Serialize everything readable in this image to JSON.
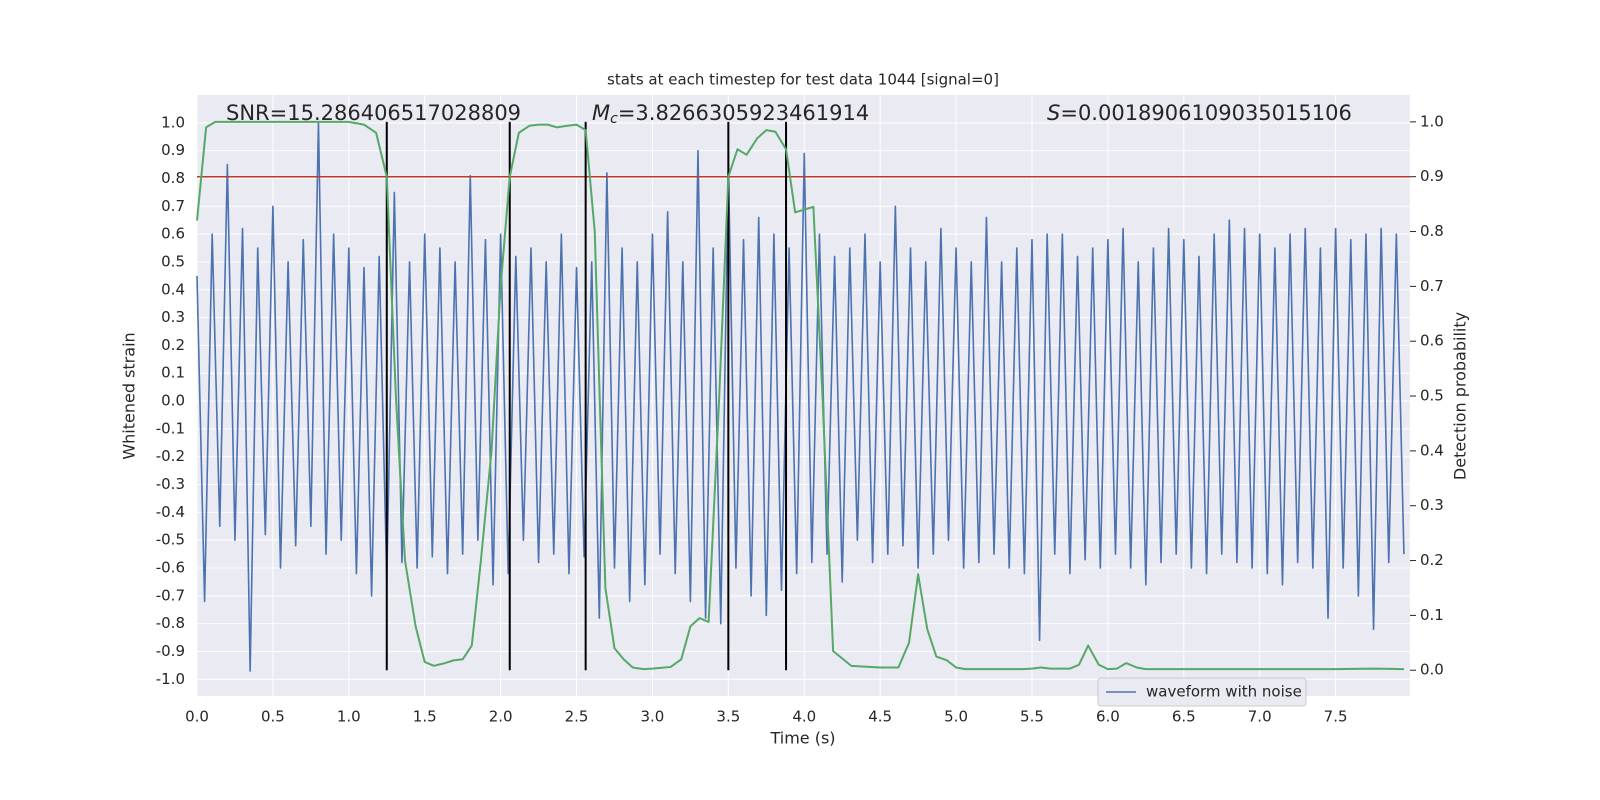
{
  "chart_data": {
    "type": "line",
    "title": "stats at each timestep for test data 1044 [signal=0]",
    "x_label": "Time (s)",
    "y_label": "Whitened strain",
    "y2_label": "Detection probability",
    "annotations": [
      {
        "text": "SNR=15.286406517028809"
      },
      {
        "symbol": "M",
        "subscript": "c",
        "text": "=3.8266305923461914"
      },
      {
        "symbol": "S",
        "text": "=0.0018906109035015106"
      }
    ],
    "xlim": [
      0,
      7.99
    ],
    "ylim": [
      -1.06,
      1.1
    ],
    "y2lim": [
      -0.047,
      1.049
    ],
    "xticks": [
      {
        "value": 0,
        "label": "0.0"
      },
      {
        "value": 0.5,
        "label": "0.5"
      },
      {
        "value": 1,
        "label": "1.0"
      },
      {
        "value": 1.5,
        "label": "1.5"
      },
      {
        "value": 2,
        "label": "2.0"
      },
      {
        "value": 2.5,
        "label": "2.5"
      },
      {
        "value": 3,
        "label": "3.0"
      },
      {
        "value": 3.5,
        "label": "3.5"
      },
      {
        "value": 4,
        "label": "4.0"
      },
      {
        "value": 4.5,
        "label": "4.5"
      },
      {
        "value": 5,
        "label": "5.0"
      },
      {
        "value": 5.5,
        "label": "5.5"
      },
      {
        "value": 6,
        "label": "6.0"
      },
      {
        "value": 6.5,
        "label": "6.5"
      },
      {
        "value": 7,
        "label": "7.0"
      },
      {
        "value": 7.5,
        "label": "7.5"
      }
    ],
    "yticks": [
      {
        "value": -1,
        "label": "-1.0"
      },
      {
        "value": -0.9,
        "label": "-0.9"
      },
      {
        "value": -0.8,
        "label": "-0.8"
      },
      {
        "value": -0.7,
        "label": "-0.7"
      },
      {
        "value": -0.6,
        "label": "-0.6"
      },
      {
        "value": -0.5,
        "label": "-0.5"
      },
      {
        "value": -0.4,
        "label": "-0.4"
      },
      {
        "value": -0.3,
        "label": "-0.3"
      },
      {
        "value": -0.2,
        "label": "-0.2"
      },
      {
        "value": -0.1,
        "label": "-0.1"
      },
      {
        "value": 0,
        "label": "0.0"
      },
      {
        "value": 0.1,
        "label": "0.1"
      },
      {
        "value": 0.2,
        "label": "0.2"
      },
      {
        "value": 0.3,
        "label": "0.3"
      },
      {
        "value": 0.4,
        "label": "0.4"
      },
      {
        "value": 0.5,
        "label": "0.5"
      },
      {
        "value": 0.6,
        "label": "0.6"
      },
      {
        "value": 0.7,
        "label": "0.7"
      },
      {
        "value": 0.8,
        "label": "0.8"
      },
      {
        "value": 0.9,
        "label": "0.9"
      },
      {
        "value": 1,
        "label": "1.0"
      }
    ],
    "y2ticks": [
      {
        "value": 0,
        "label": "0.0"
      },
      {
        "value": 0.1,
        "label": "0.1"
      },
      {
        "value": 0.2,
        "label": "0.2"
      },
      {
        "value": 0.3,
        "label": "0.3"
      },
      {
        "value": 0.4,
        "label": "0.4"
      },
      {
        "value": 0.5,
        "label": "0.5"
      },
      {
        "value": 0.6,
        "label": "0.6"
      },
      {
        "value": 0.7,
        "label": "0.7"
      },
      {
        "value": 0.8,
        "label": "0.8"
      },
      {
        "value": 0.9,
        "label": "0.9"
      },
      {
        "value": 1,
        "label": "1.0"
      }
    ],
    "grid": true,
    "legend": "lower right",
    "threshold": {
      "value": 0.9,
      "axis": "y2",
      "color": "#c0392b"
    },
    "vlines": {
      "x": [
        1.25,
        2.06,
        2.56,
        3.5,
        3.88
      ],
      "ymin": 0,
      "ymax": 1,
      "axis": "y2",
      "color": "#000000"
    },
    "series": [
      {
        "name": "waveform with noise",
        "color": "#4c72b0",
        "axis": "y",
        "x": [
          0,
          0.05,
          0.1,
          0.15,
          0.2,
          0.25,
          0.3,
          0.35,
          0.4,
          0.45,
          0.5,
          0.55,
          0.6,
          0.65,
          0.7,
          0.75,
          0.8,
          0.85,
          0.9,
          0.95,
          1,
          1.05,
          1.1,
          1.15,
          1.2,
          1.25,
          1.3,
          1.35,
          1.4,
          1.45,
          1.5,
          1.55,
          1.6,
          1.65,
          1.7,
          1.75,
          1.8,
          1.85,
          1.9,
          1.95,
          2,
          2.05,
          2.1,
          2.15,
          2.2,
          2.25,
          2.3,
          2.35,
          2.4,
          2.45,
          2.5,
          2.55,
          2.6,
          2.65,
          2.7,
          2.75,
          2.8,
          2.85,
          2.9,
          2.95,
          3,
          3.05,
          3.1,
          3.15,
          3.2,
          3.25,
          3.3,
          3.35,
          3.4,
          3.45,
          3.5,
          3.55,
          3.6,
          3.65,
          3.7,
          3.75,
          3.8,
          3.85,
          3.9,
          3.95,
          4,
          4.05,
          4.1,
          4.15,
          4.2,
          4.25,
          4.3,
          4.35,
          4.4,
          4.45,
          4.5,
          4.55,
          4.6,
          4.65,
          4.7,
          4.75,
          4.8,
          4.85,
          4.9,
          4.95,
          5,
          5.05,
          5.1,
          5.15,
          5.2,
          5.25,
          5.3,
          5.35,
          5.4,
          5.45,
          5.5,
          5.55,
          5.6,
          5.65,
          5.7,
          5.75,
          5.8,
          5.85,
          5.9,
          5.95,
          6,
          6.05,
          6.1,
          6.15,
          6.2,
          6.25,
          6.3,
          6.35,
          6.4,
          6.45,
          6.5,
          6.55,
          6.6,
          6.65,
          6.7,
          6.75,
          6.8,
          6.85,
          6.9,
          6.95,
          7,
          7.05,
          7.1,
          7.15,
          7.2,
          7.25,
          7.3,
          7.35,
          7.4,
          7.45,
          7.5,
          7.55,
          7.6,
          7.65,
          7.7,
          7.75,
          7.8,
          7.85,
          7.9,
          7.95
        ],
        "values": [
          0.45,
          -0.72,
          0.6,
          -0.45,
          0.85,
          -0.5,
          0.62,
          -0.97,
          0.55,
          -0.48,
          0.7,
          -0.6,
          0.5,
          -0.52,
          0.58,
          -0.45,
          1.0,
          -0.55,
          0.6,
          -0.5,
          0.55,
          -0.62,
          0.48,
          -0.7,
          0.52,
          -0.64,
          0.75,
          -0.58,
          0.5,
          -0.6,
          0.6,
          -0.56,
          0.55,
          -0.62,
          0.5,
          -0.55,
          0.81,
          -0.5,
          0.58,
          -0.66,
          0.6,
          -0.62,
          0.52,
          -0.5,
          0.55,
          -0.58,
          0.5,
          -0.55,
          0.6,
          -0.62,
          0.48,
          -0.56,
          0.5,
          -0.78,
          0.82,
          -0.6,
          0.55,
          -0.72,
          0.5,
          -0.66,
          0.6,
          -0.55,
          0.68,
          -0.62,
          0.5,
          -0.72,
          0.9,
          -0.78,
          0.55,
          -0.8,
          0.85,
          -0.6,
          0.58,
          -0.7,
          0.66,
          -0.77,
          0.6,
          -0.68,
          0.55,
          -0.62,
          0.89,
          -0.58,
          0.6,
          -0.55,
          0.52,
          -0.65,
          0.55,
          -0.5,
          0.6,
          -0.58,
          0.5,
          -0.55,
          0.7,
          -0.52,
          0.55,
          -0.6,
          0.5,
          -0.55,
          0.62,
          -0.5,
          0.55,
          -0.6,
          0.5,
          -0.58,
          0.66,
          -0.55,
          0.5,
          -0.6,
          0.55,
          -0.62,
          0.58,
          -0.86,
          0.6,
          -0.55,
          0.6,
          -0.62,
          0.52,
          -0.57,
          0.55,
          -0.6,
          0.58,
          -0.55,
          0.62,
          -0.6,
          0.5,
          -0.66,
          0.55,
          -0.58,
          0.62,
          -0.55,
          0.58,
          -0.6,
          0.52,
          -0.62,
          0.6,
          -0.55,
          0.65,
          -0.58,
          0.62,
          -0.6,
          0.6,
          -0.62,
          0.55,
          -0.66,
          0.6,
          -0.58,
          0.62,
          -0.6,
          0.55,
          -0.78,
          0.62,
          -0.6,
          0.58,
          -0.7,
          0.6,
          -0.82,
          0.62,
          -0.58,
          0.6,
          -0.55
        ]
      },
      {
        "color": "#55a868",
        "axis": "y2",
        "x": [
          0,
          0.06,
          0.12,
          0.25,
          0.5,
          0.75,
          1.0,
          1.1,
          1.18,
          1.25,
          1.31,
          1.37,
          1.44,
          1.5,
          1.56,
          1.62,
          1.69,
          1.75,
          1.81,
          1.87,
          1.94,
          2.0,
          2.06,
          2.12,
          2.19,
          2.25,
          2.31,
          2.37,
          2.44,
          2.5,
          2.56,
          2.62,
          2.69,
          2.75,
          2.81,
          2.87,
          2.94,
          3.0,
          3.12,
          3.19,
          3.25,
          3.31,
          3.37,
          3.44,
          3.5,
          3.56,
          3.62,
          3.69,
          3.75,
          3.81,
          3.88,
          3.94,
          4.06,
          4.12,
          4.19,
          4.31,
          4.5,
          4.62,
          4.69,
          4.75,
          4.81,
          4.87,
          4.94,
          5.0,
          5.06,
          5.25,
          5.44,
          5.5,
          5.56,
          5.62,
          5.75,
          5.81,
          5.87,
          5.94,
          6.0,
          6.06,
          6.12,
          6.19,
          6.25,
          6.5,
          7.0,
          7.5,
          7.75,
          7.95
        ],
        "values": [
          0.82,
          0.99,
          1.0,
          1.0,
          1.0,
          1.0,
          1.0,
          0.995,
          0.98,
          0.9,
          0.5,
          0.2,
          0.08,
          0.015,
          0.008,
          0.012,
          0.018,
          0.02,
          0.045,
          0.2,
          0.4,
          0.7,
          0.9,
          0.98,
          0.993,
          0.995,
          0.995,
          0.99,
          0.993,
          0.995,
          0.985,
          0.8,
          0.15,
          0.04,
          0.02,
          0.005,
          0.002,
          0.003,
          0.006,
          0.02,
          0.08,
          0.095,
          0.088,
          0.5,
          0.9,
          0.95,
          0.94,
          0.97,
          0.985,
          0.982,
          0.95,
          0.835,
          0.845,
          0.5,
          0.035,
          0.008,
          0.005,
          0.005,
          0.05,
          0.175,
          0.075,
          0.025,
          0.018,
          0.005,
          0.002,
          0.002,
          0.002,
          0.003,
          0.005,
          0.003,
          0.003,
          0.01,
          0.045,
          0.01,
          0.002,
          0.003,
          0.013,
          0.005,
          0.002,
          0.002,
          0.002,
          0.002,
          0.003,
          0.002
        ]
      }
    ]
  }
}
